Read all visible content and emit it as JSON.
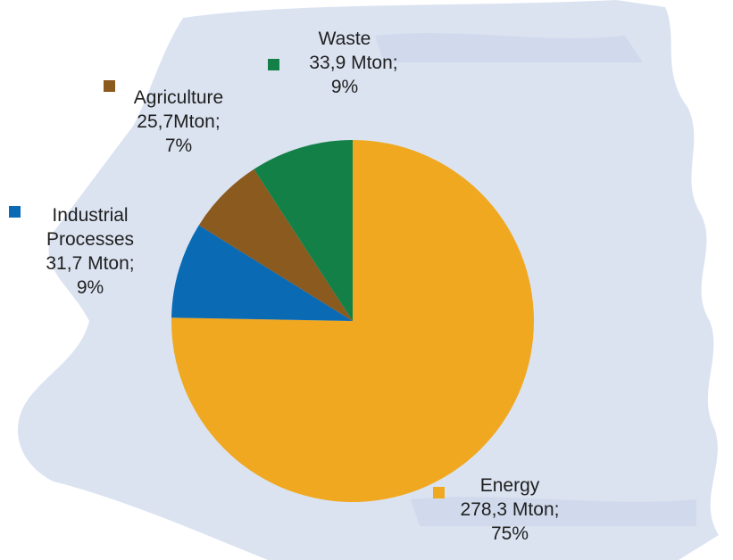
{
  "chart_data": {
    "type": "pie",
    "start_angle_deg": 0,
    "direction": "clockwise",
    "slices": [
      {
        "name": "Energy",
        "value": 278.3,
        "value_label": "278,3 Mton;",
        "percent_label": "75%",
        "color": "#F0A820"
      },
      {
        "name": "Industrial Processes",
        "name_lines": [
          "Industrial",
          "Processes"
        ],
        "value": 31.7,
        "value_label": "31,7 Mton;",
        "percent_label": "9%",
        "color": "#0A6AB4"
      },
      {
        "name": "Agriculture",
        "value": 25.7,
        "value_label": "25,7Mton;",
        "percent_label": "7%",
        "color": "#8B5A1E"
      },
      {
        "name": "Waste",
        "value": 33.9,
        "value_label": "33,9 Mton;",
        "percent_label": "9%",
        "color": "#138047"
      }
    ],
    "background_color": "#D5DEEE"
  }
}
